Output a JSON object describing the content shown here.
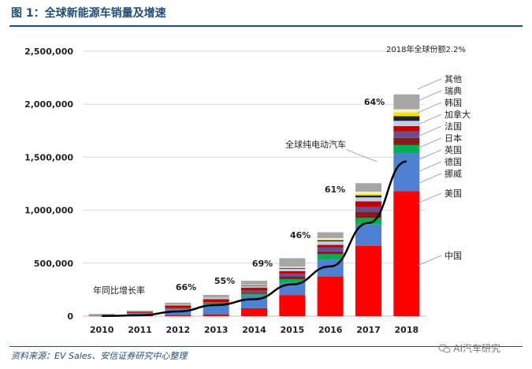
{
  "header": {
    "title": "图 1：全球新能源车销量及增速"
  },
  "footer": {
    "source": "资料来源：EV Sales、安信证券研究中心整理",
    "watermark": "AI汽车研究"
  },
  "colors": {
    "中国": "#ff0000",
    "美国": "#4f81d3",
    "挪威": "#00b050",
    "德国": "#8b1a1a",
    "英国": "#6a4c93",
    "日本": "#c00000",
    "法国": "#bcd0ea",
    "加拿大": "#222222",
    "韩国": "#f2e200",
    "瑞典": "#f5f0c8",
    "其他": "#a6a6a6",
    "line": "#000000"
  },
  "chart_data": {
    "type": "bar",
    "stacked": true,
    "categories": [
      "2010",
      "2011",
      "2012",
      "2013",
      "2014",
      "2015",
      "2016",
      "2017",
      "2018"
    ],
    "ylim": [
      0,
      2500000
    ],
    "yticks": [
      "0",
      "500,000",
      "1,000,000",
      "1,500,000",
      "2,000,000",
      "2,500,000"
    ],
    "ytick_values": [
      0,
      500000,
      1000000,
      1500000,
      2000000,
      2500000
    ],
    "grid": true,
    "series": [
      {
        "name": "中国",
        "values": [
          3000,
          8000,
          13000,
          18000,
          75000,
          200000,
          375000,
          665000,
          1180000
        ]
      },
      {
        "name": "美国",
        "values": [
          3000,
          17000,
          53000,
          96000,
          120000,
          115000,
          160000,
          200000,
          360000
        ]
      },
      {
        "name": "挪威",
        "values": [
          500,
          2000,
          5000,
          8000,
          18000,
          35000,
          50000,
          62000,
          75000
        ]
      },
      {
        "name": "德国",
        "values": [
          500,
          2000,
          3000,
          6000,
          12000,
          22000,
          26000,
          55000,
          68000
        ]
      },
      {
        "name": "英国",
        "values": [
          500,
          2000,
          3000,
          4000,
          15000,
          28000,
          37000,
          47000,
          60000
        ]
      },
      {
        "name": "日本",
        "values": [
          500,
          12000,
          24000,
          29000,
          30000,
          25000,
          25000,
          55000,
          50000
        ]
      },
      {
        "name": "法国",
        "values": [
          500,
          2000,
          6000,
          10000,
          15000,
          23000,
          33000,
          37000,
          50000
        ]
      },
      {
        "name": "加拿大",
        "values": [
          500,
          500,
          1000,
          2000,
          5000,
          7000,
          11000,
          18000,
          45000
        ]
      },
      {
        "name": "韩国",
        "values": [
          500,
          1000,
          2000,
          2000,
          2000,
          3000,
          5000,
          15000,
          35000
        ]
      },
      {
        "name": "瑞典",
        "values": [
          500,
          500,
          1000,
          2000,
          4000,
          9000,
          15000,
          21000,
          30000
        ]
      },
      {
        "name": "其他",
        "values": [
          12000,
          6000,
          17000,
          24000,
          38000,
          80000,
          55000,
          80000,
          140000
        ]
      }
    ],
    "line": {
      "name": "全球纯电动汽车",
      "values": [
        2000,
        8000,
        45000,
        105000,
        160000,
        300000,
        470000,
        880000,
        1460000
      ]
    },
    "growth_caption": "年同比增长率",
    "growth_labels": [
      {
        "category": "2012",
        "text": "66%"
      },
      {
        "category": "2013",
        "text": "55%"
      },
      {
        "category": "2014",
        "text": "69%"
      },
      {
        "category": "2015",
        "text": "46%"
      },
      {
        "category": "2016",
        "text": "61%"
      },
      {
        "category": "2018",
        "text": "64%"
      }
    ],
    "share_annotation": "2018年全球份额2.2%",
    "legend_labels": [
      "其他",
      "瑞典",
      "韩国",
      "加拿大",
      "法国",
      "日本",
      "英国",
      "德国",
      "挪威",
      "美国",
      "中国"
    ],
    "legend_placement": "right"
  }
}
